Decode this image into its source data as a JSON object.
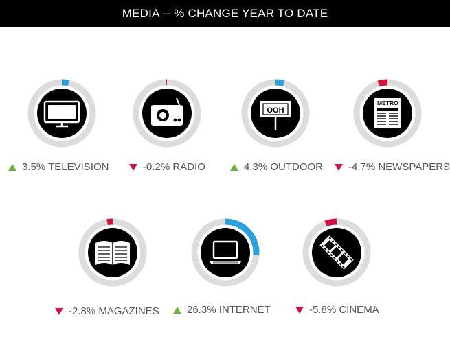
{
  "header": {
    "title": "MEDIA -- % CHANGE YEAR TO DATE"
  },
  "colors": {
    "track": "#dcdcdc",
    "positive": "#2aa1db",
    "negative": "#d31145",
    "arrow_up": "#6bb33a",
    "arrow_down": "#d31145",
    "icon_bg": "#000000",
    "icon_fg": "#ffffff"
  },
  "chart_data": {
    "type": "radial-progress",
    "title": "MEDIA -- % CHANGE YEAR TO DATE",
    "unit": "%",
    "items": [
      {
        "id": "television",
        "name": "TELEVISION",
        "value": 3.5,
        "label": "3.5% TELEVISION",
        "direction": "up",
        "icon": "television-icon"
      },
      {
        "id": "radio",
        "name": "RADIO",
        "value": -0.2,
        "label": "-0.2% RADIO",
        "direction": "down",
        "icon": "radio-icon"
      },
      {
        "id": "outdoor",
        "name": "OUTDOOR",
        "value": 4.3,
        "label": "4.3% OUTDOOR",
        "direction": "up",
        "icon": "billboard-icon",
        "icon_text": "OOH"
      },
      {
        "id": "newspapers",
        "name": "NEWSPAPERS",
        "value": -4.7,
        "label": "-4.7% NEWSPAPERS",
        "direction": "down",
        "icon": "newspaper-icon",
        "icon_text": "METRO"
      },
      {
        "id": "magazines",
        "name": "MAGAZINES",
        "value": -2.8,
        "label": "-2.8% MAGAZINES",
        "direction": "down",
        "icon": "magazine-icon"
      },
      {
        "id": "internet",
        "name": "INTERNET",
        "value": 26.3,
        "label": "26.3% INTERNET",
        "direction": "up",
        "icon": "laptop-icon"
      },
      {
        "id": "cinema",
        "name": "CINEMA",
        "value": -5.8,
        "label": "-5.8% CINEMA",
        "direction": "down",
        "icon": "film-strip-icon"
      }
    ]
  }
}
